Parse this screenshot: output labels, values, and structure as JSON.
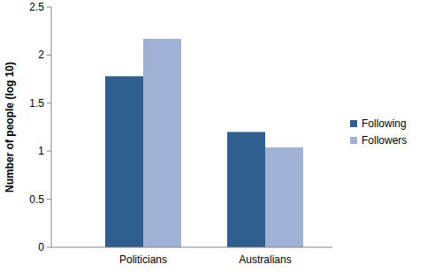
{
  "chart_data": {
    "type": "bar",
    "y_label": "Number of people (log 10)",
    "categories": [
      "Politicians",
      "Australians"
    ],
    "series": [
      {
        "name": "Following",
        "color": "#2f5f8f",
        "values": [
          1.78,
          1.2
        ]
      },
      {
        "name": "Followers",
        "color": "#9fb1d4",
        "values": [
          2.17,
          1.04
        ]
      }
    ],
    "ylim": [
      0,
      2.5
    ],
    "yticks": [
      0,
      0.5,
      1,
      1.5,
      2,
      2.5
    ],
    "grid": false,
    "legend": "right"
  }
}
